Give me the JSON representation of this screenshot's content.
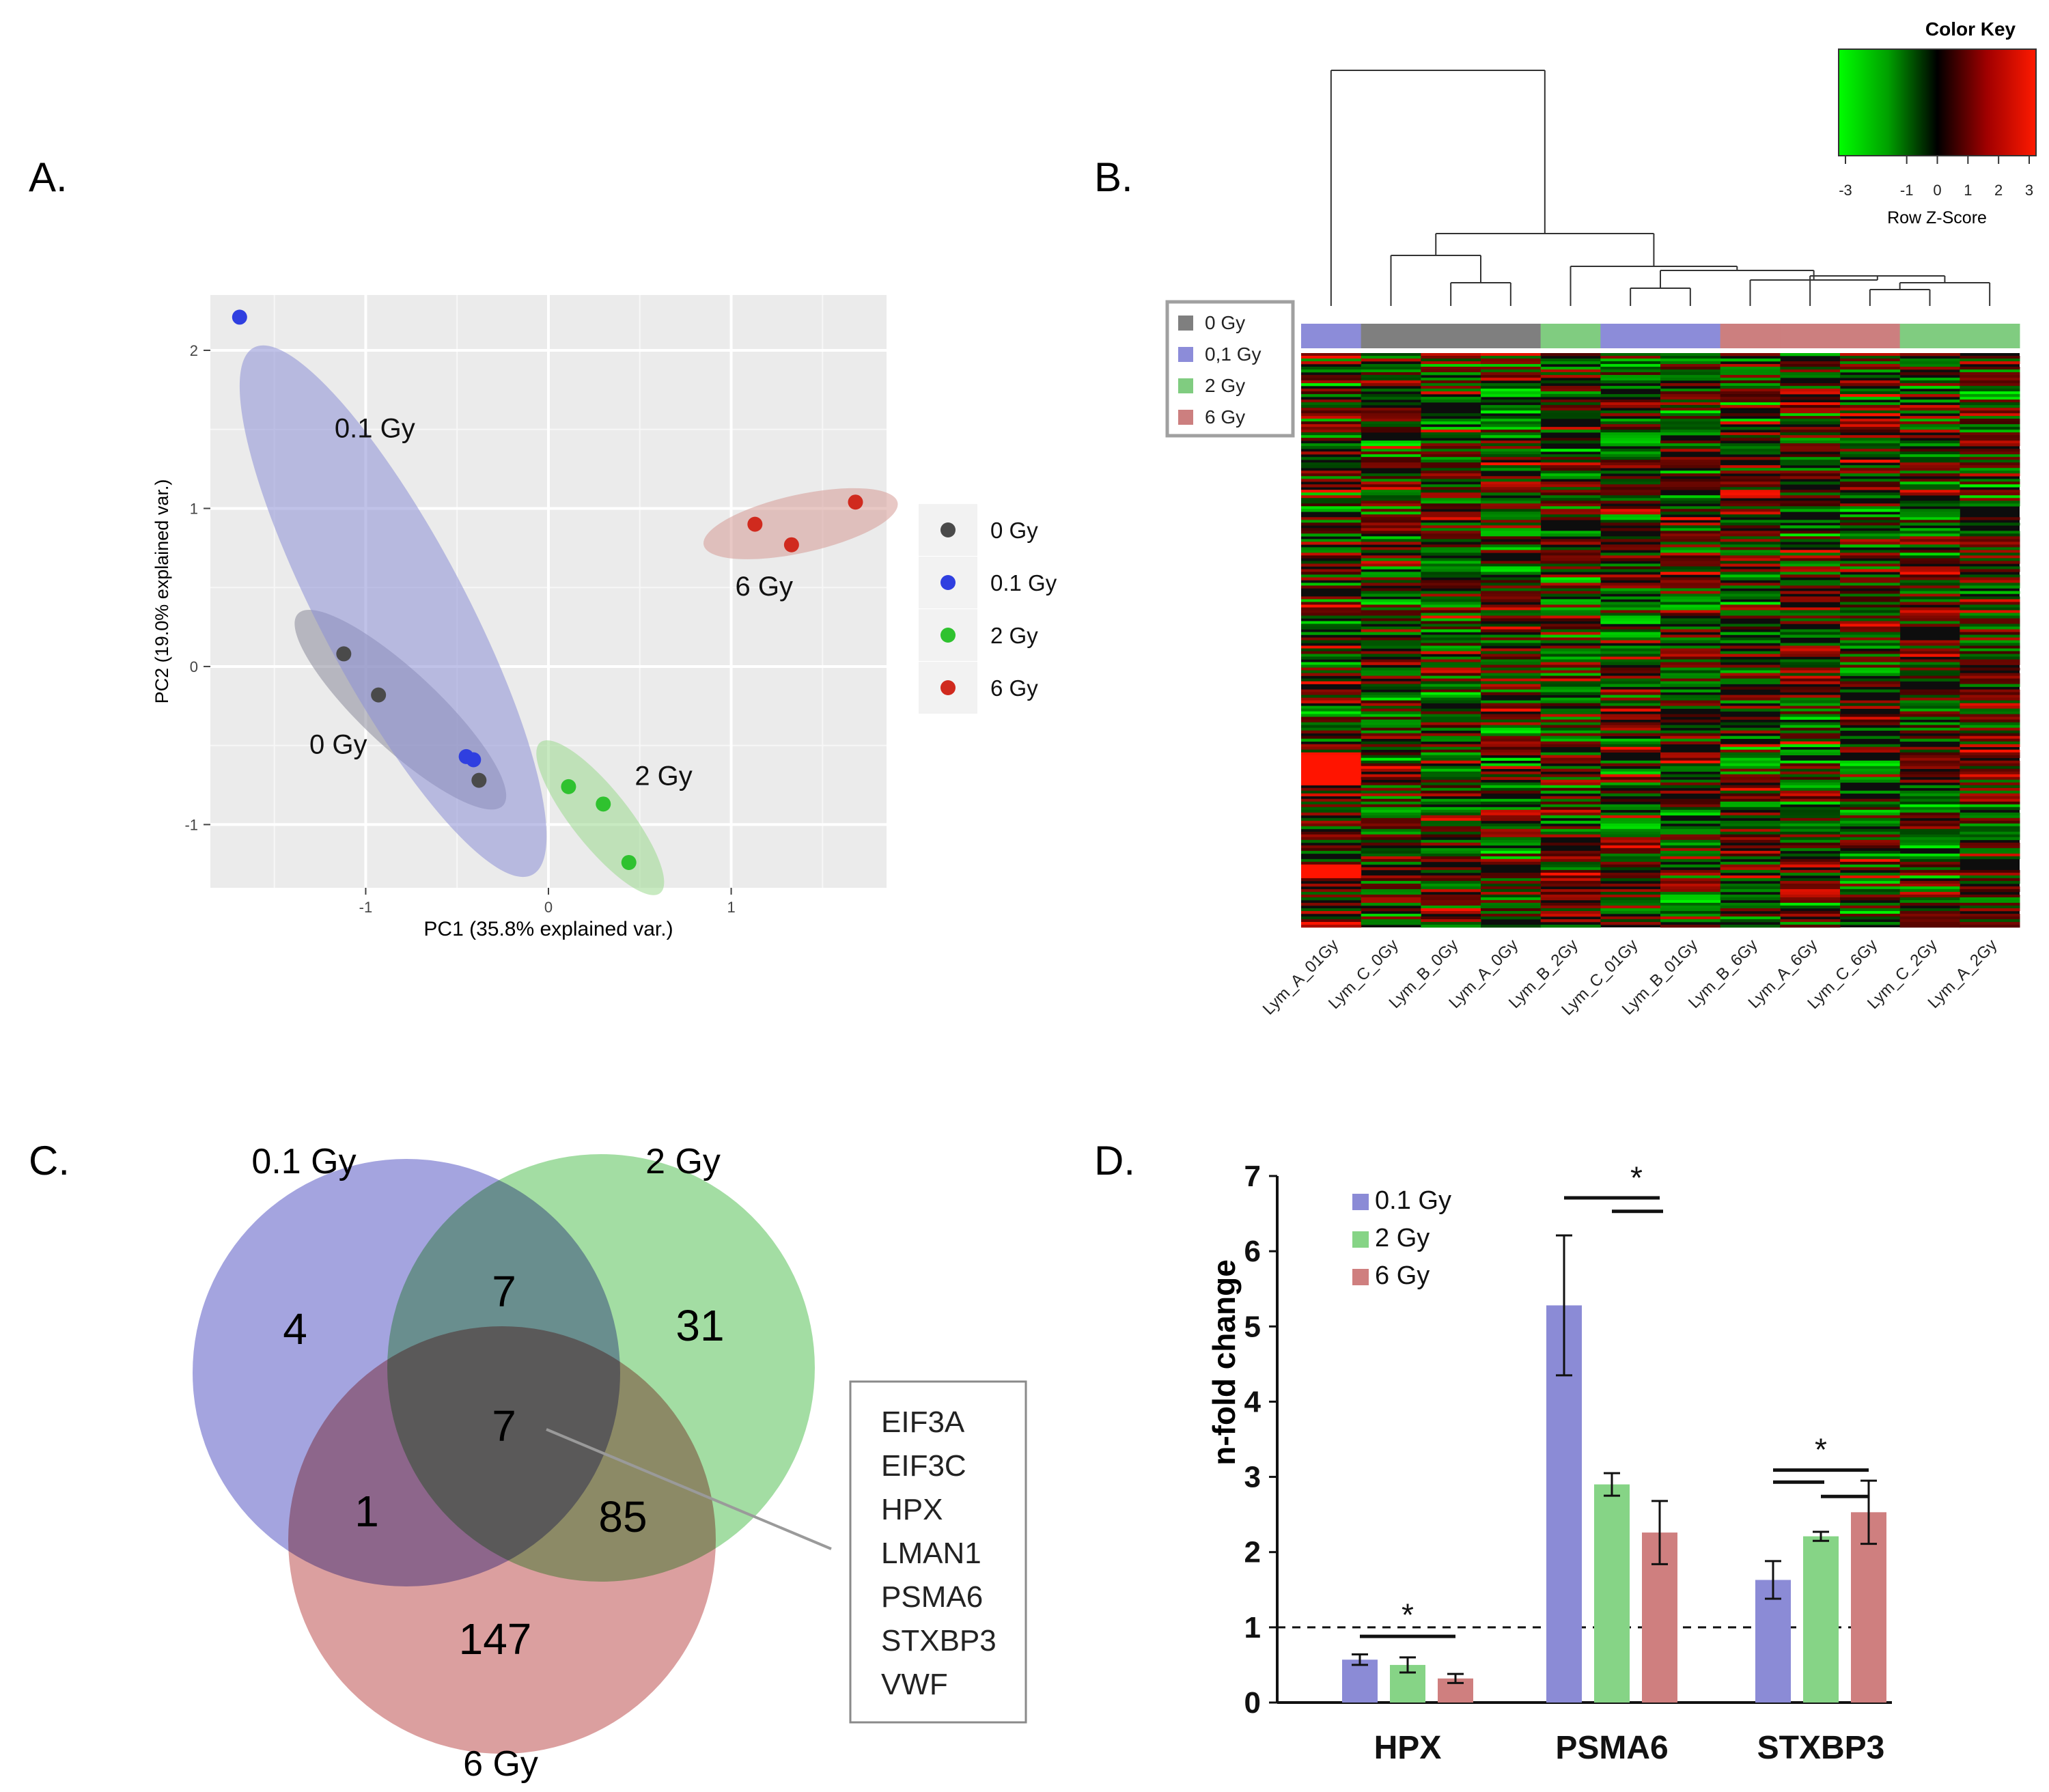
{
  "panel_labels": {
    "a": "A.",
    "b": "B.",
    "c": "C.",
    "d": "D."
  },
  "colors": {
    "g0": "#4a4a4a",
    "g01": "#2f3fe0",
    "g2": "#2fc22f",
    "g6": "#d02a1e",
    "ell0": "#8a8a9a",
    "ell01": "#8d8fd6",
    "ell2": "#9bd88e",
    "ell6": "#d69a96",
    "pca_bg": "#ebebeb",
    "bar01": "#8b8bd6",
    "bar2": "#86d486",
    "bar6": "#cf7f7f",
    "venn01": "#8b8bd6",
    "venn2": "#7fd07f",
    "venn6": "#cf7f7f",
    "hm_bar0": "#7f7f7f",
    "hm_bar01": "#8c8cd9",
    "hm_bar2": "#80cc80",
    "hm_bar6": "#cc7f7f"
  },
  "chart_data": [
    {
      "id": "A",
      "type": "scatter",
      "title": "",
      "xlabel": "PC1 (35.8% explained var.)",
      "ylabel": "PC2 (19.0% explained var.)",
      "xlim": [
        -1.85,
        1.85
      ],
      "ylim": [
        -1.4,
        2.35
      ],
      "xticks": [
        -1,
        0,
        1
      ],
      "yticks": [
        -1,
        0,
        1,
        2
      ],
      "legend": [
        "0 Gy",
        "0.1 Gy",
        "2 Gy",
        "6 Gy"
      ],
      "group_labels": [
        {
          "text": "0.1 Gy",
          "x": -0.95,
          "y": 1.45
        },
        {
          "text": "0 Gy",
          "x": -1.15,
          "y": -0.55
        },
        {
          "text": "2 Gy",
          "x": 0.63,
          "y": -0.75
        },
        {
          "text": "6 Gy",
          "x": 1.18,
          "y": 0.45
        }
      ],
      "series": [
        {
          "name": "0 Gy",
          "points": [
            [
              -1.12,
              0.08
            ],
            [
              -0.93,
              -0.18
            ],
            [
              -0.38,
              -0.72
            ]
          ]
        },
        {
          "name": "0.1 Gy",
          "points": [
            [
              -1.69,
              2.21
            ],
            [
              -0.45,
              -0.57
            ],
            [
              -0.41,
              -0.59
            ]
          ]
        },
        {
          "name": "2 Gy",
          "points": [
            [
              0.11,
              -0.76
            ],
            [
              0.3,
              -0.87
            ],
            [
              0.44,
              -1.24
            ]
          ]
        },
        {
          "name": "6 Gy",
          "points": [
            [
              1.13,
              0.9
            ],
            [
              1.33,
              0.77
            ],
            [
              1.68,
              1.04
            ]
          ]
        }
      ]
    },
    {
      "id": "B",
      "type": "heatmap",
      "title": "Color Key",
      "colorbar_label": "Row Z-Score",
      "colorbar_ticks": [
        "-3",
        "-1",
        "0",
        "1",
        "2",
        "3"
      ],
      "legend": [
        "0 Gy",
        "0,1 Gy",
        "2 Gy",
        "6 Gy"
      ],
      "columns": [
        "Lym_A_01Gy",
        "Lym_C_0Gy",
        "Lym_B_0Gy",
        "Lym_A_0Gy",
        "Lym_B_2Gy",
        "Lym_C_01Gy",
        "Lym_B_01Gy",
        "Lym_B_6Gy",
        "Lym_A_6Gy",
        "Lym_C_6Gy",
        "Lym_C_2Gy",
        "Lym_A_2Gy"
      ],
      "column_groups": [
        "0,1 Gy",
        "0 Gy",
        "0 Gy",
        "0 Gy",
        "2 Gy",
        "0,1 Gy",
        "0,1 Gy",
        "6 Gy",
        "6 Gy",
        "6 Gy",
        "2 Gy",
        "2 Gy"
      ]
    },
    {
      "id": "C",
      "type": "venn",
      "sets": [
        "0.1 Gy",
        "2 Gy",
        "6 Gy"
      ],
      "regions": {
        "only_01": "4",
        "only_2": "31",
        "only_6": "147",
        "01_2": "7",
        "01_6": "1",
        "2_6": "85",
        "all": "7"
      },
      "callout_genes": [
        "EIF3A",
        "EIF3C",
        "HPX",
        "LMAN1",
        "PSMA6",
        "STXBP3",
        "VWF"
      ]
    },
    {
      "id": "D",
      "type": "bar",
      "categories": [
        "HPX",
        "PSMA6",
        "STXBP3"
      ],
      "ylabel": "n-fold change",
      "ylim": [
        0,
        7
      ],
      "yticks": [
        "0",
        "1",
        "2",
        "3",
        "4",
        "5",
        "6",
        "7"
      ],
      "reference_line": 1,
      "series": [
        {
          "name": "0.1 Gy",
          "values": [
            0.57,
            5.28,
            1.63
          ],
          "errors": [
            0.07,
            0.93,
            0.25
          ]
        },
        {
          "name": "2 Gy",
          "values": [
            0.5,
            2.9,
            2.21
          ],
          "errors": [
            0.1,
            0.15,
            0.06
          ]
        },
        {
          "name": "6 Gy",
          "values": [
            0.32,
            2.26,
            2.53
          ],
          "errors": [
            0.06,
            0.42,
            0.42
          ]
        }
      ],
      "significance": [
        "*",
        "*",
        "*"
      ]
    }
  ]
}
